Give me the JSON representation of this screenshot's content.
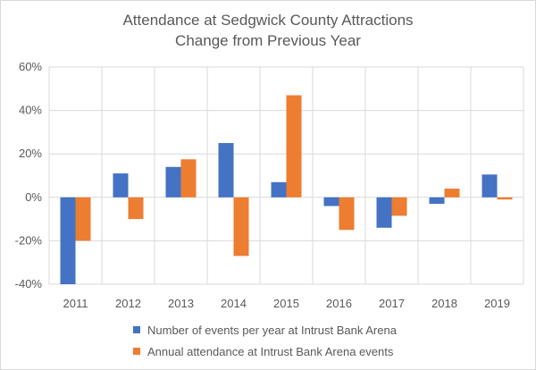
{
  "chart_data": {
    "type": "bar",
    "title": "Attendance at Sedgwick County Attractions",
    "subtitle": "Change from Previous Year",
    "categories": [
      "2011",
      "2012",
      "2013",
      "2014",
      "2015",
      "2016",
      "2017",
      "2018",
      "2019"
    ],
    "series": [
      {
        "name": "Number of events per year at Intrust Bank Arena",
        "color": "#4472c4",
        "values": [
          -40,
          11,
          14,
          25,
          7,
          -4,
          -14,
          -3,
          10.5
        ]
      },
      {
        "name": "Annual attendance at Intrust Bank Arena events",
        "color": "#ed7d31",
        "values": [
          -20,
          -10,
          17.5,
          -27,
          47,
          -15,
          -8.5,
          4,
          -1
        ]
      }
    ],
    "yticks": [
      "60%",
      "40%",
      "20%",
      "0%",
      "-20%",
      "-40%"
    ],
    "ylim": [
      -40,
      60
    ],
    "grid": true,
    "legend_position": "bottom"
  }
}
